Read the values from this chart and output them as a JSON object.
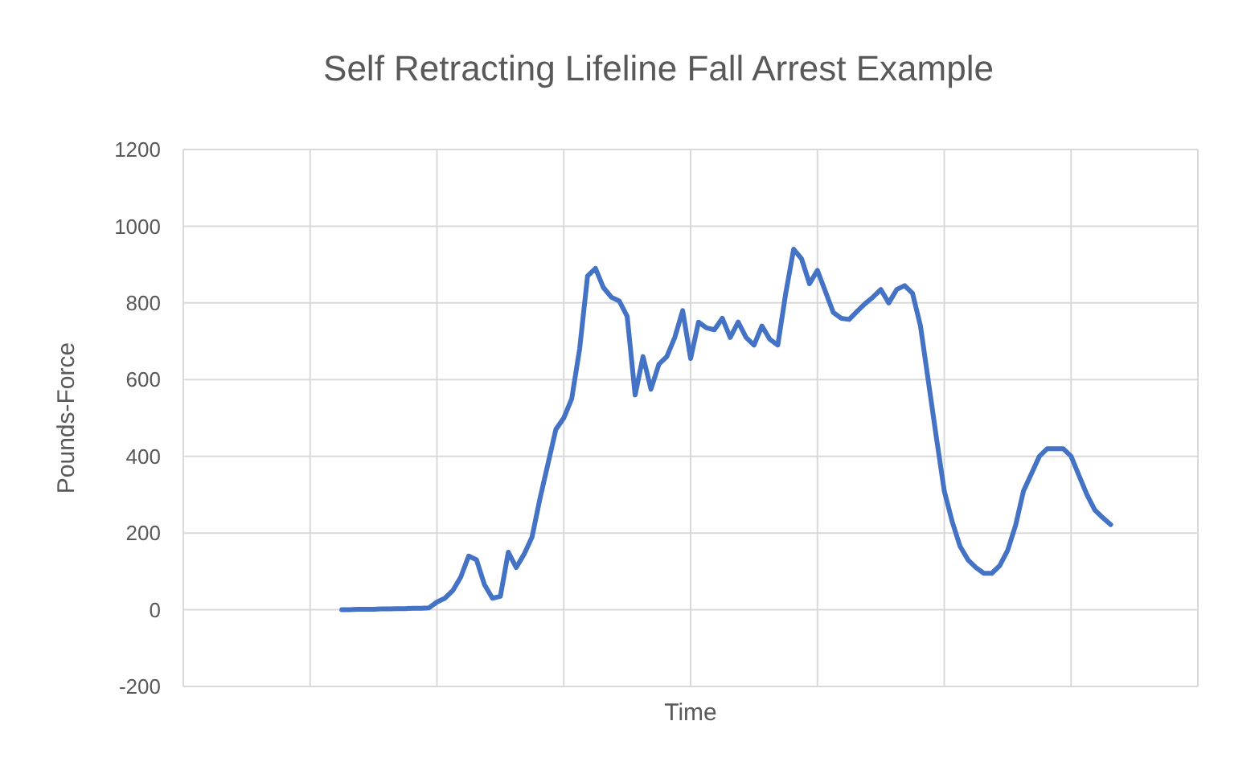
{
  "chart_data": {
    "type": "line",
    "title": "Self Retracting Lifeline Fall Arrest Example",
    "xlabel": "Time",
    "ylabel": "Pounds-Force",
    "categories": [
      null,
      null,
      null,
      null,
      null,
      null,
      null,
      null,
      null,
      null,
      null,
      null,
      null,
      null,
      null,
      null,
      null,
      null,
      null,
      null,
      null,
      null,
      null,
      null,
      null,
      null,
      null,
      null,
      null,
      null,
      null,
      null,
      null,
      null,
      null,
      null,
      null,
      null,
      null,
      null,
      null,
      null,
      null,
      null,
      null,
      null,
      null,
      null,
      null,
      null,
      null,
      null,
      null,
      null,
      null,
      null,
      null,
      null,
      null,
      null,
      null,
      null,
      null,
      null,
      null,
      null,
      null,
      null,
      null,
      null,
      null,
      null,
      null,
      null,
      null,
      null,
      null,
      null,
      null,
      null,
      null,
      null,
      null,
      null,
      null,
      null,
      null,
      null,
      null,
      null,
      null,
      null,
      null,
      null,
      null,
      null,
      null,
      null,
      null,
      null,
      null,
      null,
      null,
      null,
      null,
      null,
      null,
      null,
      null,
      null,
      null,
      null,
      null,
      null,
      null,
      null,
      null,
      null,
      null,
      null,
      null,
      null,
      null,
      null,
      null,
      null,
      null,
      null,
      null
    ],
    "ylim": [
      -200,
      1200
    ],
    "yticks": [
      -200,
      0,
      200,
      400,
      600,
      800,
      1000,
      1200
    ],
    "grid": true,
    "marker": "none",
    "line_style": "solid",
    "series": [
      {
        "color": "#4472c4",
        "values": [
          null,
          null,
          null,
          null,
          null,
          null,
          null,
          null,
          null,
          null,
          null,
          null,
          null,
          null,
          null,
          null,
          null,
          null,
          null,
          null,
          0,
          0,
          1,
          1,
          1,
          2,
          2,
          3,
          3,
          4,
          4,
          5,
          20,
          30,
          50,
          85,
          140,
          130,
          65,
          30,
          35,
          150,
          110,
          145,
          190,
          290,
          380,
          470,
          500,
          550,
          680,
          870,
          890,
          840,
          815,
          805,
          765,
          560,
          660,
          575,
          640,
          660,
          710,
          780,
          655,
          750,
          735,
          730,
          760,
          710,
          750,
          710,
          690,
          740,
          705,
          690,
          825,
          940,
          915,
          850,
          885,
          830,
          775,
          760,
          757,
          778,
          798,
          815,
          835,
          800,
          835,
          845,
          825,
          740,
          595,
          450,
          310,
          230,
          165,
          130,
          110,
          95,
          95,
          115,
          155,
          220,
          310,
          355,
          400,
          420,
          420,
          420,
          400,
          350,
          300,
          260,
          240,
          222,
          null,
          null,
          null,
          null,
          null,
          null,
          null,
          null,
          null,
          null,
          null
        ]
      }
    ]
  }
}
